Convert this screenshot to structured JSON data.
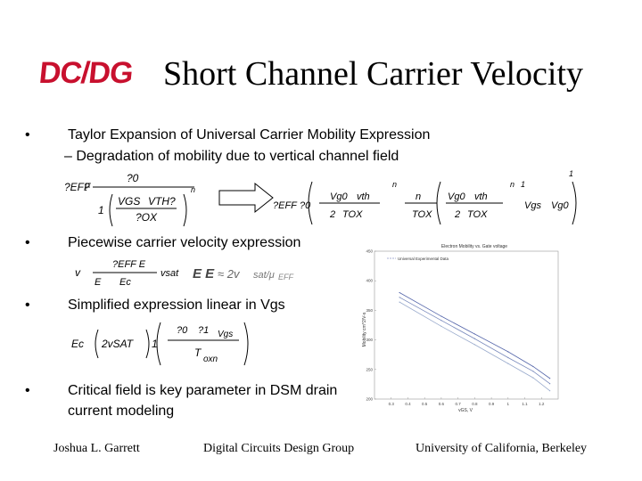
{
  "slide": {
    "logo_text": "DC/DG",
    "title": "Short Channel Carrier Velocity",
    "bullet_symbol": "•",
    "bullets": [
      {
        "text": "Taylor Expansion of Universal Carrier Mobility Expression"
      },
      {
        "text": "Piecewise carrier velocity expression"
      },
      {
        "text": "Simplified expression linear in Vgs"
      },
      {
        "text": "Critical field is key parameter in DSM drain current modeling"
      }
    ],
    "sub_bullet": "– Degradation of mobility due to vertical channel field",
    "eq1_left": {
      "lhs": "?EFF",
      "eq": "?",
      "num": "?0",
      "den_a": "1",
      "den_b": "VGS",
      "den_c": "VTH",
      "den_d": "?",
      "den_e": "?OX",
      "exp": "n"
    },
    "eq1_right": {
      "lhs": "?EFF",
      "t1": "?0",
      "t2": "Vg0",
      "t3": "vth",
      "t4": "2",
      "t5": "TOX",
      "t6": "n",
      "t7": "n",
      "t8": "TOX",
      "t9": "Vg0",
      "t10": "vth",
      "t11": "2",
      "t12": "TOX",
      "t13": "n",
      "t14": "1",
      "t15": "Vgs",
      "t16": "Vg0",
      "t17": "1"
    },
    "eq2": {
      "a": "v",
      "b": "?EFF E",
      "c": "E",
      "d": "Ec",
      "e": "vsat"
    },
    "eq3": {
      "a": "Ec",
      "b": "2vSAT",
      "c": "?0",
      "d": "?1",
      "e": "Vgs",
      "f": "T",
      "g": "oxn",
      "h": "1"
    },
    "footer": {
      "left": "Joshua L. Garrett",
      "center": "Digital Circuits Design Group",
      "right": "University of California, Berkeley"
    }
  },
  "chart_data": {
    "type": "line",
    "title": "Electron Mobility vs. Gate voltage",
    "xlabel": "vGS, V",
    "ylabel": "Mobility cm^2/V-s",
    "legend": "Universal Experimental Data",
    "legend_position": "top-left",
    "xlim": [
      0.2,
      1.3
    ],
    "ylim": [
      200,
      450
    ],
    "x_ticks": [
      "0.3",
      "0.4",
      "0.5",
      "0.6",
      "0.7",
      "0.8",
      "0.9",
      "1",
      "1.1",
      "1.2"
    ],
    "y_ticks": [
      "200",
      "250",
      "300",
      "350",
      "400",
      "450"
    ],
    "series": [
      {
        "x": [
          0.35,
          0.6,
          0.8,
          1.0,
          1.15,
          1.25
        ],
        "y": [
          380,
          340,
          310,
          280,
          255,
          235
        ]
      },
      {
        "x": [
          0.35,
          0.6,
          0.8,
          1.0,
          1.15,
          1.25
        ],
        "y": [
          372,
          333,
          302,
          270,
          247,
          226
        ]
      },
      {
        "x": [
          0.35,
          0.6,
          0.8,
          1.0,
          1.15,
          1.25
        ],
        "y": [
          364,
          323,
          292,
          260,
          236,
          214
        ]
      }
    ],
    "colors": [
      "#5566aa",
      "#7788bb",
      "#99aacc"
    ]
  }
}
